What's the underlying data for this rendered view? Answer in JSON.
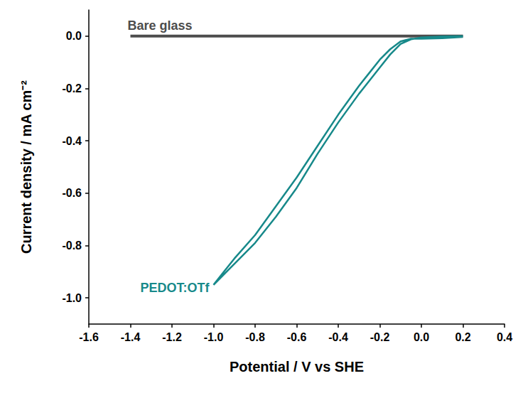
{
  "chart_data": {
    "type": "line",
    "x_label": "Potential / V vs SHE",
    "y_label": "Current density / mA cm⁻²",
    "xlim": [
      -1.6,
      0.4
    ],
    "xticks": [
      -1.6,
      -1.4,
      -1.2,
      {
        "value": -1,
        "label": "-1.0"
      },
      -0.8,
      -0.6,
      -0.4,
      -0.2,
      {
        "value": 0,
        "label": "0.0"
      },
      0.2,
      0.4
    ],
    "ylim": [
      -1.1,
      0.1
    ],
    "yticks": [
      {
        "value": -1,
        "label": "-1.0"
      },
      -0.8,
      -0.6,
      -0.4,
      -0.2,
      {
        "value": 0,
        "label": "0.0"
      }
    ],
    "grid": false,
    "series": [
      {
        "name": "Bare glass",
        "color": "#4d4d4d",
        "x": [
          -1.4,
          -1.0,
          -0.6,
          -0.2,
          0.2
        ],
        "values": [
          0,
          0,
          0,
          0,
          0
        ]
      },
      {
        "name": "PEDOT:OTf",
        "color": "#17898a",
        "x": [
          0.2,
          0.1,
          0.0,
          -0.05,
          -0.1,
          -0.15,
          -0.2,
          -0.25,
          -0.3,
          -0.4,
          -0.5,
          -0.6,
          -0.7,
          -0.8,
          -0.9,
          -1.0,
          -0.95,
          -0.9,
          -0.8,
          -0.7,
          -0.6,
          -0.5,
          -0.4,
          -0.3,
          -0.25,
          -0.2,
          -0.15,
          -0.1,
          -0.05,
          0.0,
          0.1,
          0.2
        ],
        "values": [
          0.0,
          -0.001,
          -0.005,
          -0.012,
          -0.03,
          -0.07,
          -0.12,
          -0.17,
          -0.22,
          -0.33,
          -0.45,
          -0.58,
          -0.69,
          -0.79,
          -0.87,
          -0.95,
          -0.9,
          -0.85,
          -0.76,
          -0.65,
          -0.54,
          -0.42,
          -0.3,
          -0.19,
          -0.14,
          -0.09,
          -0.05,
          -0.02,
          -0.01,
          -0.01,
          -0.008,
          -0.003
        ]
      }
    ]
  }
}
